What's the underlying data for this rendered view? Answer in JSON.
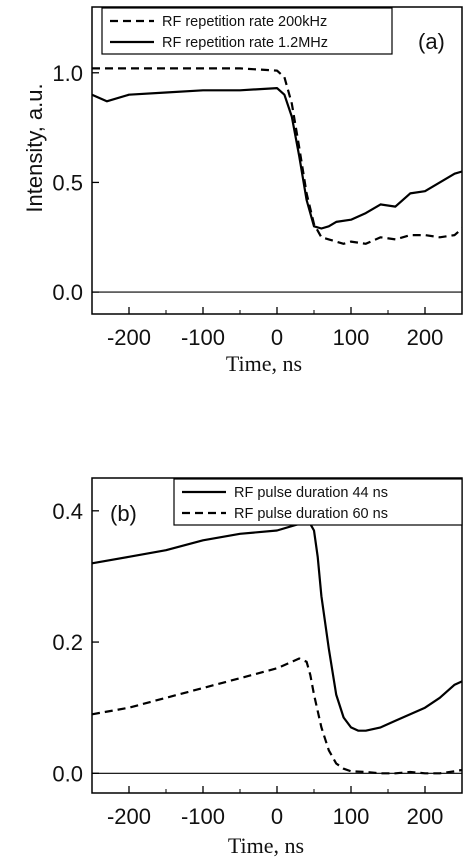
{
  "chart_data": [
    {
      "type": "line",
      "panel_label": "(a)",
      "xlabel": "Time, ns",
      "ylabel": "Intensity, a.u.",
      "xlim": [
        -250,
        250
      ],
      "ylim": [
        -0.1,
        1.3
      ],
      "xticks": [
        -200,
        -100,
        0,
        100,
        200
      ],
      "xtick_labels": [
        "-200",
        "-100",
        "0",
        "100",
        "200"
      ],
      "yticks": [
        0.0,
        0.5,
        1.0
      ],
      "ytick_labels": [
        "0.0",
        "0.5",
        "1.0"
      ],
      "zero_line": true,
      "legend_position": "top",
      "series": [
        {
          "name": "RF repetition rate 200kHz",
          "style": "dashed",
          "x": [
            -250,
            -200,
            -150,
            -100,
            -50,
            0,
            10,
            20,
            30,
            40,
            50,
            60,
            70,
            80,
            90,
            100,
            120,
            140,
            160,
            180,
            200,
            220,
            240,
            250
          ],
          "y": [
            1.02,
            1.02,
            1.02,
            1.02,
            1.02,
            1.01,
            0.98,
            0.86,
            0.66,
            0.45,
            0.31,
            0.25,
            0.24,
            0.23,
            0.22,
            0.23,
            0.22,
            0.25,
            0.24,
            0.26,
            0.26,
            0.25,
            0.26,
            0.29
          ]
        },
        {
          "name": "RF repetition rate 1.2MHz",
          "style": "solid",
          "x": [
            -250,
            -230,
            -200,
            -150,
            -100,
            -50,
            0,
            10,
            20,
            30,
            40,
            50,
            60,
            70,
            80,
            100,
            120,
            140,
            160,
            180,
            200,
            220,
            240,
            250
          ],
          "y": [
            0.9,
            0.87,
            0.9,
            0.91,
            0.92,
            0.92,
            0.93,
            0.9,
            0.8,
            0.62,
            0.42,
            0.3,
            0.29,
            0.3,
            0.32,
            0.33,
            0.36,
            0.4,
            0.39,
            0.45,
            0.46,
            0.5,
            0.54,
            0.55
          ]
        }
      ]
    },
    {
      "type": "line",
      "panel_label": "(b)",
      "xlabel": "Time, ns",
      "ylabel": "",
      "xlim": [
        -250,
        250
      ],
      "ylim": [
        -0.03,
        0.45
      ],
      "xticks": [
        -200,
        -100,
        0,
        100,
        200
      ],
      "xtick_labels": [
        "-200",
        "-100",
        "0",
        "100",
        "200"
      ],
      "yticks": [
        0.0,
        0.2,
        0.4
      ],
      "ytick_labels": [
        "0.0",
        "0.2",
        "0.4"
      ],
      "zero_line": true,
      "legend_position": "top-right",
      "series": [
        {
          "name": "RF pulse duration 44 ns",
          "style": "solid",
          "x": [
            -250,
            -200,
            -150,
            -100,
            -50,
            0,
            30,
            45,
            50,
            55,
            60,
            70,
            80,
            90,
            100,
            110,
            120,
            140,
            160,
            180,
            200,
            220,
            240,
            250
          ],
          "y": [
            0.32,
            0.33,
            0.34,
            0.355,
            0.365,
            0.37,
            0.38,
            0.38,
            0.37,
            0.33,
            0.27,
            0.19,
            0.12,
            0.085,
            0.07,
            0.065,
            0.065,
            0.07,
            0.08,
            0.09,
            0.1,
            0.115,
            0.135,
            0.14
          ]
        },
        {
          "name": "RF pulse duration 60 ns",
          "style": "dashed",
          "x": [
            -250,
            -200,
            -150,
            -100,
            -50,
            0,
            20,
            30,
            40,
            45,
            50,
            60,
            70,
            80,
            90,
            100,
            120,
            140,
            160,
            180,
            200,
            220,
            240,
            250
          ],
          "y": [
            0.09,
            0.1,
            0.115,
            0.13,
            0.145,
            0.16,
            0.17,
            0.175,
            0.17,
            0.15,
            0.12,
            0.07,
            0.035,
            0.015,
            0.007,
            0.003,
            0.002,
            0.0,
            0.0,
            0.002,
            0.0,
            0.0,
            0.003,
            0.005
          ]
        }
      ]
    }
  ]
}
